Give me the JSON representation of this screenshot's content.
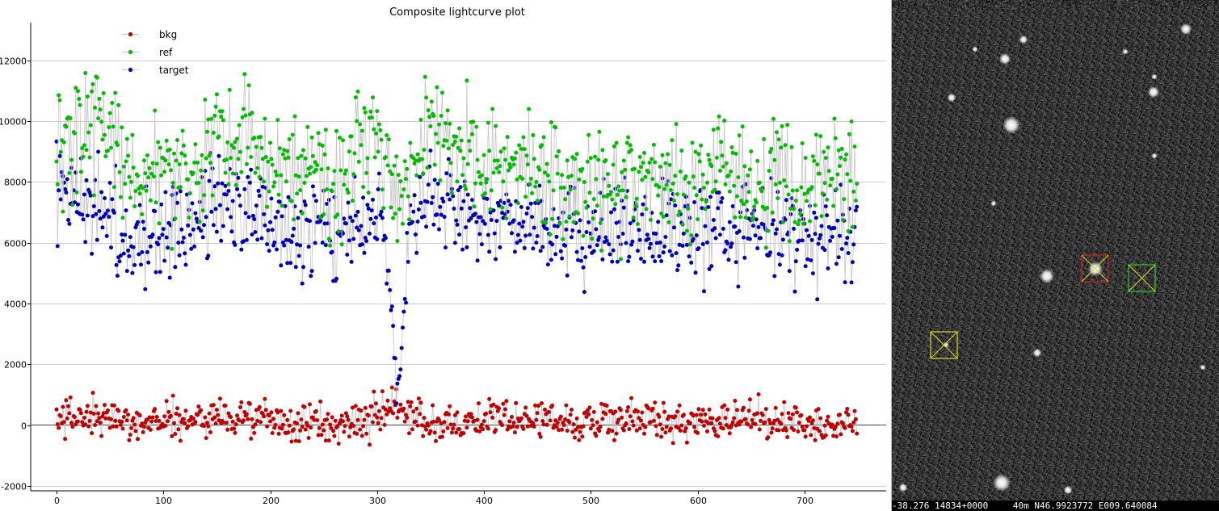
{
  "chart_data": {
    "type": "scatter",
    "title": "Composite lightcurve plot",
    "xlabel": "",
    "ylabel": "",
    "xlim": [
      -20,
      770
    ],
    "ylim": [
      -2100,
      13000
    ],
    "xticks": [
      0,
      100,
      200,
      300,
      400,
      500,
      600,
      700
    ],
    "yticks": [
      -2000,
      0,
      2000,
      4000,
      6000,
      8000,
      10000,
      12000
    ],
    "grid": "horizontal",
    "legend_position": "top-left",
    "n_points": 750,
    "series": [
      {
        "name": "bkg",
        "color": "#c00000",
        "anchors_x": [
          0,
          20,
          40,
          60,
          80,
          100,
          130,
          150,
          172,
          200,
          216,
          240,
          257,
          280,
          300,
          312,
          318,
          322,
          330,
          350,
          380,
          400,
          442,
          455,
          480,
          500,
          540,
          580,
          600,
          627,
          650,
          677,
          700,
          740,
          750
        ],
        "anchors_y": [
          200,
          300,
          150,
          250,
          100,
          200,
          150,
          300,
          250,
          150,
          0,
          100,
          -50,
          150,
          200,
          500,
          700,
          300,
          150,
          100,
          150,
          200,
          150,
          250,
          100,
          150,
          200,
          150,
          100,
          300,
          150,
          50,
          100,
          150,
          100
        ]
      },
      {
        "name": "ref",
        "color": "#00bb00",
        "anchors_x": [
          0,
          20,
          40,
          60,
          80,
          100,
          130,
          150,
          172,
          200,
          216,
          240,
          257,
          280,
          300,
          312,
          318,
          322,
          330,
          350,
          380,
          400,
          442,
          455,
          480,
          500,
          540,
          580,
          600,
          627,
          650,
          677,
          700,
          740,
          750
        ],
        "anchors_y": [
          9500,
          9200,
          10000,
          8700,
          7800,
          8800,
          7800,
          9900,
          9300,
          8800,
          8300,
          8500,
          7600,
          8800,
          9400,
          8000,
          7600,
          7400,
          8400,
          9600,
          9100,
          8500,
          8500,
          8200,
          8000,
          7600,
          8000,
          8100,
          7900,
          8400,
          8000,
          8200,
          8100,
          8000,
          8000
        ]
      },
      {
        "name": "target",
        "color": "#0000bb",
        "anchors_x": [
          0,
          20,
          40,
          60,
          80,
          100,
          130,
          150,
          172,
          200,
          216,
          240,
          257,
          280,
          300,
          312,
          318,
          322,
          330,
          350,
          380,
          400,
          442,
          455,
          480,
          500,
          540,
          580,
          600,
          627,
          650,
          677,
          700,
          740,
          750
        ],
        "anchors_y": [
          7700,
          7400,
          7400,
          6500,
          5900,
          6500,
          6300,
          7400,
          7000,
          6700,
          6200,
          6700,
          6100,
          6600,
          6900,
          5500,
          1000,
          2000,
          6800,
          7200,
          6800,
          6800,
          6600,
          6400,
          6400,
          6200,
          6400,
          6400,
          6300,
          6600,
          6500,
          6400,
          6200,
          6200,
          6100
        ]
      }
    ]
  },
  "image_viewer": {
    "status_left": "-38.276",
    "status_mid": "14834+0000",
    "status_scale": "40m",
    "status_coords": "N46.9923772 E009.640084"
  },
  "colors": {
    "bkg": "#c00000",
    "ref": "#00bb00",
    "target": "#0000bb",
    "marker_target": "#cc2222",
    "marker_ref": "#22cc22",
    "marker_check": "#dddd22"
  }
}
